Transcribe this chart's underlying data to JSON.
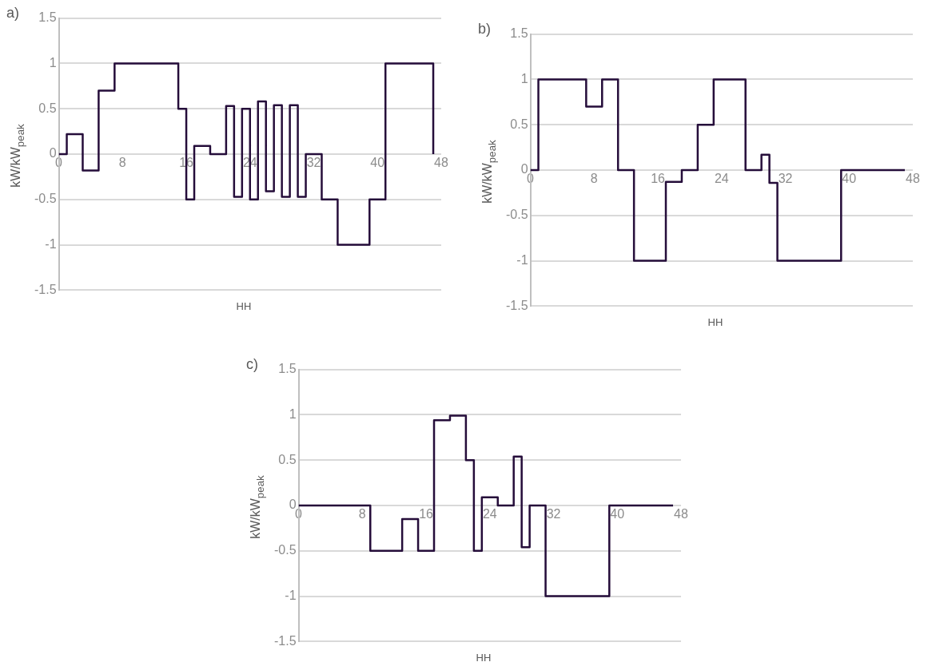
{
  "chart_data": [
    {
      "type": "step",
      "title": "a)",
      "xlabel": "HH",
      "ylabel": "kW/kW$_{peak}$",
      "xlim": [
        0,
        48
      ],
      "xticks": [
        0,
        8,
        16,
        24,
        32,
        40,
        48
      ],
      "ylim": [
        -1.5,
        1.5
      ],
      "yticks": [
        -1.5,
        -1,
        -0.5,
        0,
        0.5,
        1,
        1.5
      ],
      "grid": "y",
      "legend": false,
      "marker": "none",
      "series": [
        {
          "color": "#250d3a",
          "x": [
            0,
            1,
            3,
            5,
            7,
            15,
            16,
            17,
            19,
            21,
            22,
            23,
            24,
            25,
            26,
            27,
            28,
            29,
            30,
            31,
            33,
            35,
            39,
            41,
            47
          ],
          "values": [
            0,
            0.22,
            -0.18,
            0.7,
            1,
            0.5,
            -0.5,
            0.09,
            0,
            0.53,
            -0.47,
            0.5,
            -0.5,
            0.58,
            -0.41,
            0.54,
            -0.47,
            0.54,
            -0.47,
            0,
            -0.5,
            -1,
            -0.5,
            1,
            0
          ]
        }
      ]
    },
    {
      "type": "step",
      "title": "b)",
      "xlabel": "HH",
      "ylabel": "kW/kW$_{peak}$",
      "xlim": [
        0,
        48
      ],
      "xticks": [
        0,
        8,
        16,
        24,
        32,
        40,
        48
      ],
      "ylim": [
        -1.5,
        1.5
      ],
      "yticks": [
        -1.5,
        -1,
        -0.5,
        0,
        0.5,
        1,
        1.5
      ],
      "grid": "y",
      "legend": false,
      "marker": "none",
      "series": [
        {
          "color": "#250d3a",
          "x": [
            0,
            1,
            7,
            9,
            11,
            13,
            17,
            19,
            21,
            23,
            27,
            29,
            30,
            31,
            39,
            47
          ],
          "values": [
            0,
            1,
            0.7,
            1,
            0,
            -1,
            -0.13,
            0,
            0.5,
            1,
            0,
            0.17,
            -0.14,
            -1,
            0,
            0
          ]
        }
      ]
    },
    {
      "type": "step",
      "title": "c)",
      "xlabel": "HH",
      "ylabel": "kW/kW$_{peak}$",
      "xlim": [
        0,
        48
      ],
      "xticks": [
        0,
        8,
        16,
        24,
        32,
        40,
        48
      ],
      "ylim": [
        -1.5,
        1.5
      ],
      "yticks": [
        -1.5,
        -1,
        -0.5,
        0,
        0.5,
        1,
        1.5
      ],
      "grid": "y",
      "legend": false,
      "marker": "none",
      "series": [
        {
          "color": "#250d3a",
          "x": [
            0,
            9,
            13,
            15,
            17,
            19,
            21,
            22,
            23,
            25,
            27,
            28,
            29,
            31,
            39,
            47
          ],
          "values": [
            0,
            -0.5,
            -0.15,
            -0.5,
            0.94,
            0.99,
            0.5,
            -0.5,
            0.09,
            0,
            0.54,
            -0.46,
            0,
            -1,
            0,
            0
          ]
        }
      ]
    }
  ]
}
